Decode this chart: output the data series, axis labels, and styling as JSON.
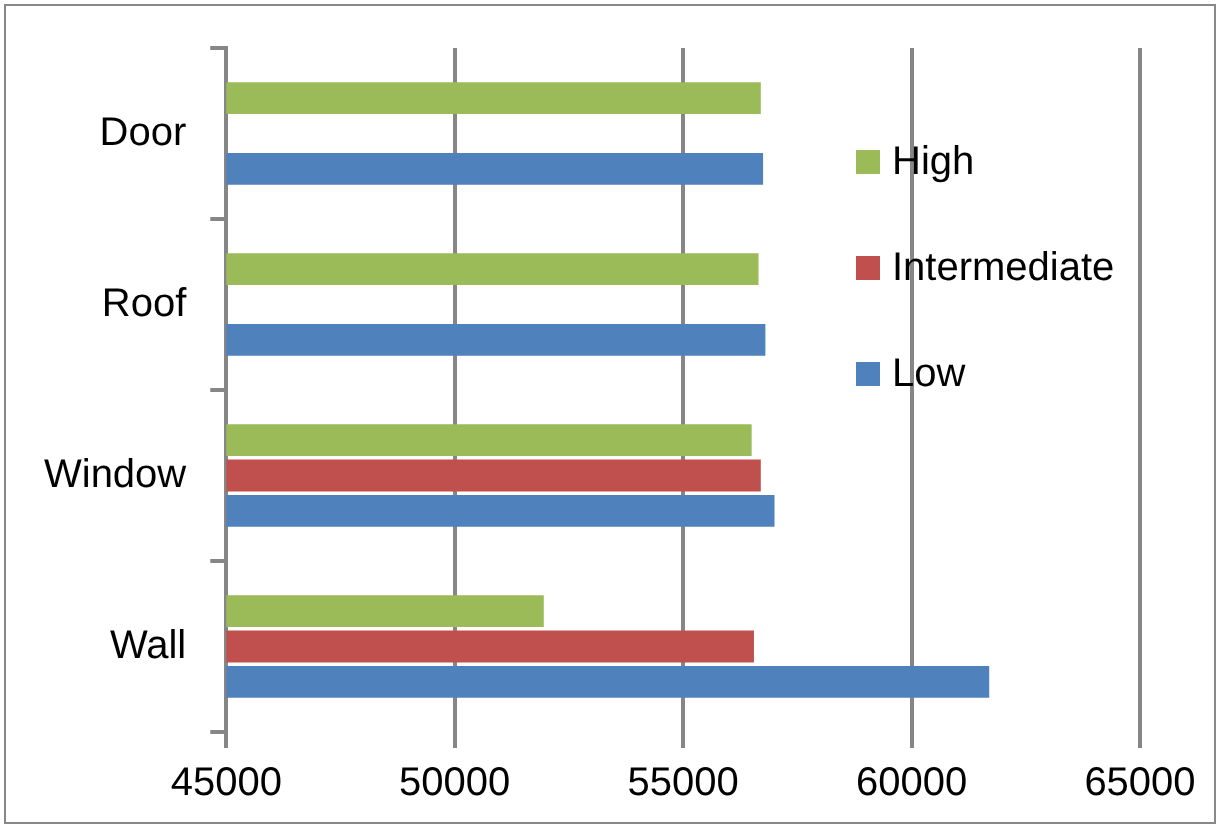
{
  "chart_data": {
    "type": "bar",
    "orientation": "horizontal",
    "categories": [
      "Door",
      "Roof",
      "Window",
      "Wall"
    ],
    "series": [
      {
        "name": "High",
        "color": "#9bbb59",
        "values": [
          56700,
          56650,
          56500,
          51950
        ]
      },
      {
        "name": "Intermediate",
        "color": "#c0504d",
        "values": [
          null,
          null,
          56700,
          56550
        ]
      },
      {
        "name": "Low",
        "color": "#4f81bd",
        "values": [
          56750,
          56800,
          57000,
          61700
        ]
      }
    ],
    "xlim": [
      45000,
      65000
    ],
    "xticks": [
      45000,
      50000,
      55000,
      60000,
      65000
    ],
    "grid": "x",
    "legend": "right"
  }
}
